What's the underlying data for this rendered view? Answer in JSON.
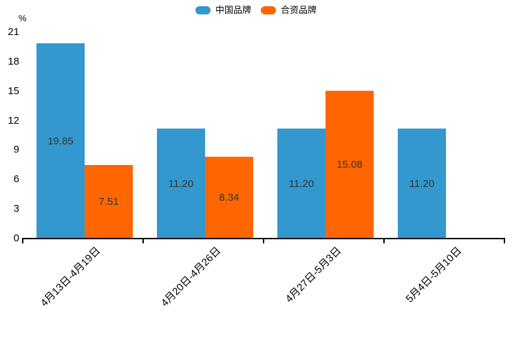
{
  "chart_data": {
    "type": "bar",
    "title": "",
    "categories": [
      "4月13日-4月19日",
      "4月20日-4月26日",
      "4月27日-5月3日",
      "5月4日-5月10日"
    ],
    "series": [
      {
        "name": "中国品牌",
        "color": "#3398cd",
        "values": [
          19.85,
          11.2,
          11.2,
          11.2
        ]
      },
      {
        "name": "合资品牌",
        "color": "#ff6600",
        "values": [
          7.51,
          8.34,
          15.08,
          null
        ]
      }
    ],
    "ylabel": "%",
    "ylim": [
      0,
      21
    ],
    "yticks": [
      0,
      3,
      6,
      9,
      12,
      15,
      18,
      21
    ],
    "grid": false,
    "legend_position": "top-center",
    "value_labels": "inside-center",
    "value_label_color": "#333333",
    "axis_color": "#000000"
  }
}
